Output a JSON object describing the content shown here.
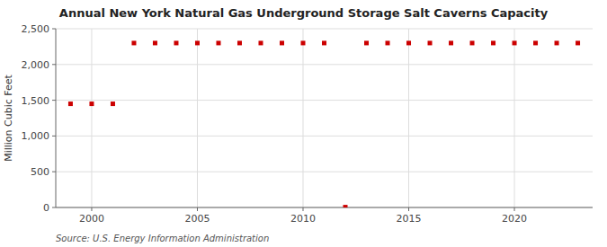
{
  "chart_data": {
    "type": "scatter",
    "title": "Annual New York Natural Gas Underground Storage Salt Caverns Capacity",
    "ylabel": "Million Cubic Feet",
    "source": "Source: U.S. Energy Information Administration",
    "x": [
      1999,
      2000,
      2001,
      2002,
      2003,
      2004,
      2005,
      2006,
      2007,
      2008,
      2009,
      2010,
      2011,
      2012,
      2013,
      2014,
      2015,
      2016,
      2017,
      2018,
      2019,
      2020,
      2021,
      2022,
      2023
    ],
    "values": [
      1450,
      1450,
      1450,
      2300,
      2300,
      2300,
      2300,
      2300,
      2300,
      2300,
      2300,
      2300,
      2300,
      5,
      2300,
      2300,
      2300,
      2300,
      2300,
      2300,
      2300,
      2300,
      2300,
      2300,
      2300
    ],
    "color": "#cc0000",
    "marker": "square",
    "xlim": [
      1998.3,
      2023.7
    ],
    "ylim": [
      0,
      2500
    ],
    "xticks": [
      2000,
      2005,
      2010,
      2015,
      2020
    ],
    "yticks": [
      0,
      500,
      {
        "value": 1000,
        "label": "1,000"
      },
      {
        "value": 1500,
        "label": "1,500"
      },
      {
        "value": 2000,
        "label": "2,000"
      },
      {
        "value": 2500,
        "label": "2,500"
      }
    ],
    "grid": true
  }
}
